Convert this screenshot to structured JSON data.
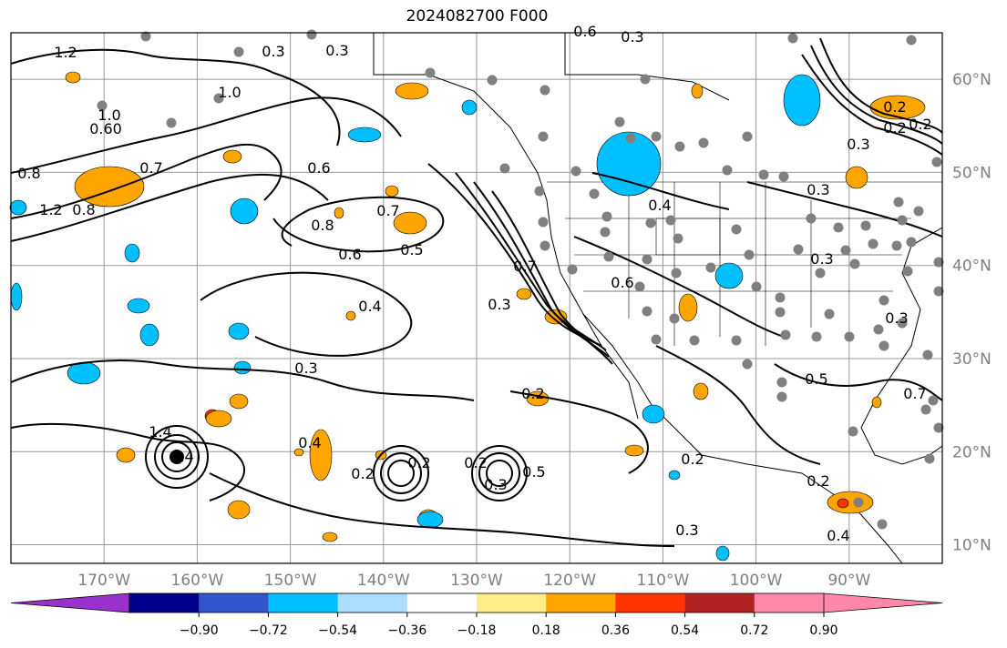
{
  "title": "2024082700 F000",
  "map": {
    "lon_range": [
      -180,
      -80
    ],
    "lat_range": [
      8,
      65
    ],
    "lon_ticks": [
      "170°W",
      "160°W",
      "150°W",
      "140°W",
      "130°W",
      "120°W",
      "110°W",
      "100°W",
      "90°W"
    ],
    "lat_ticks": [
      "60°N",
      "50°N",
      "40°N",
      "30°N",
      "20°N",
      "10°N"
    ],
    "contour_labels": [
      "1.2",
      "0.8",
      "1.0",
      "1.2",
      "0.8",
      "0.7",
      "1.0",
      "0.3",
      "0.3",
      "0.6",
      "0.8",
      "0.7",
      "0.6",
      "0.5",
      "0.4",
      "0.3",
      "0.4",
      "0.2",
      "0.3",
      "0.3",
      "0.7",
      "0.6",
      "0.4",
      "0.2",
      "0.2",
      "0.3",
      "0.4",
      "0.5",
      "0.7",
      "0.6",
      "0.3",
      "0.2",
      "0.2",
      "0.3",
      "0.3",
      "0.3",
      "0.2",
      "0.2",
      "0.2",
      "0.5",
      "0.4",
      "1.4",
      "0.60",
      "0.3",
      "0.2"
    ],
    "colors": {
      "neg_strong": "#00bfff",
      "neg_weak": "#aaddff",
      "pos_weak": "#ffee88",
      "pos_mid": "#ffa500",
      "pos_strong": "#ff3300",
      "dots": "#808080"
    }
  },
  "colorbar": {
    "ticks": [
      "−0.90",
      "−0.72",
      "−0.54",
      "−0.36",
      "−0.18",
      "0.18",
      "0.36",
      "0.54",
      "0.72",
      "0.90"
    ],
    "colors": [
      "#9932cc",
      "#00008b",
      "#3355cc",
      "#00bfff",
      "#aaddff",
      "#ffffff",
      "#ffee88",
      "#ffa500",
      "#ff3300",
      "#b22222",
      "#ff88aa",
      "#ff88aa"
    ]
  }
}
